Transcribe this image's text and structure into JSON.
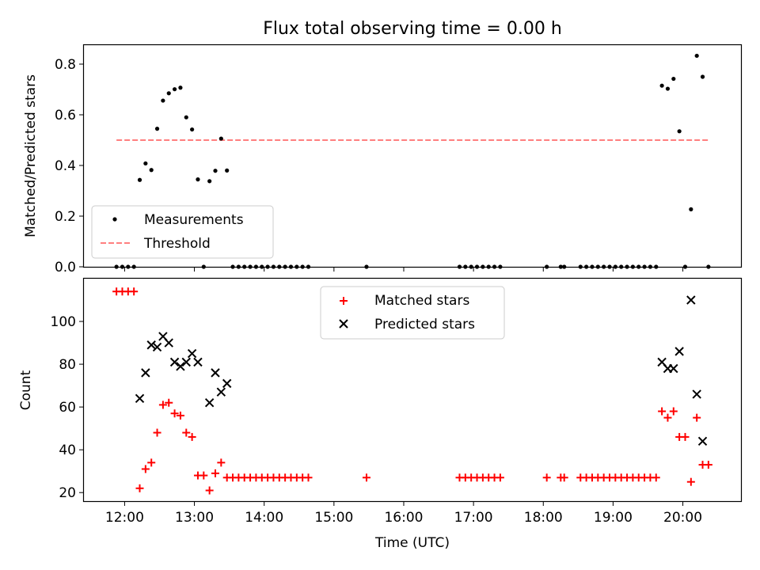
{
  "chart_data": [
    {
      "type": "scatter",
      "title": "Flux total observing time = 0.00 h",
      "ylabel": "Matched/Predicted stars",
      "xlabel": "",
      "x_unit": "hours UTC",
      "xlim": [
        "11:25",
        "20:50"
      ],
      "ylim": [
        0,
        0.875
      ],
      "yticks": [
        0,
        0.2,
        0.4,
        0.6,
        0.8
      ],
      "ytick_labels": [
        "0.0",
        "0.2",
        "0.4",
        "0.6",
        "0.8"
      ],
      "legend_placement": "lower-left",
      "series": [
        {
          "name": "Measurements",
          "marker": "dot",
          "color": "#000000",
          "points": [
            [
              "11:53",
              0
            ],
            [
              "11:58",
              0
            ],
            [
              "12:03",
              0
            ],
            [
              "12:08",
              0
            ],
            [
              "12:13",
              0.343
            ],
            [
              "12:18",
              0.408
            ],
            [
              "12:23",
              0.382
            ],
            [
              "12:28",
              0.545
            ],
            [
              "12:33",
              0.656
            ],
            [
              "12:38",
              0.685
            ],
            [
              "12:43",
              0.701
            ],
            [
              "12:48",
              0.707
            ],
            [
              "12:53",
              0.59
            ],
            [
              "12:58",
              0.542
            ],
            [
              "13:03",
              0.345
            ],
            [
              "13:08",
              0
            ],
            [
              "13:13",
              0.338
            ],
            [
              "13:18",
              0.379
            ],
            [
              "13:23",
              0.506
            ],
            [
              "13:28",
              0.38
            ],
            [
              "13:33",
              0
            ],
            [
              "13:38",
              0
            ],
            [
              "13:43",
              0
            ],
            [
              "13:48",
              0
            ],
            [
              "13:53",
              0
            ],
            [
              "13:58",
              0
            ],
            [
              "14:03",
              0
            ],
            [
              "14:08",
              0
            ],
            [
              "14:13",
              0
            ],
            [
              "14:18",
              0
            ],
            [
              "14:23",
              0
            ],
            [
              "14:28",
              0
            ],
            [
              "14:33",
              0
            ],
            [
              "14:38",
              0
            ],
            [
              "15:28",
              0
            ],
            [
              "16:48",
              0
            ],
            [
              "16:53",
              0
            ],
            [
              "16:58",
              0
            ],
            [
              "17:03",
              0
            ],
            [
              "17:08",
              0
            ],
            [
              "17:13",
              0
            ],
            [
              "17:18",
              0
            ],
            [
              "17:23",
              0
            ],
            [
              "18:03",
              0
            ],
            [
              "18:15",
              0
            ],
            [
              "18:18",
              0
            ],
            [
              "18:32",
              0
            ],
            [
              "18:37",
              0
            ],
            [
              "18:42",
              0
            ],
            [
              "18:47",
              0
            ],
            [
              "18:52",
              0
            ],
            [
              "18:57",
              0
            ],
            [
              "19:02",
              0
            ],
            [
              "19:07",
              0
            ],
            [
              "19:12",
              0
            ],
            [
              "19:17",
              0
            ],
            [
              "19:22",
              0
            ],
            [
              "19:27",
              0
            ],
            [
              "19:32",
              0
            ],
            [
              "19:37",
              0
            ],
            [
              "19:42",
              0.715
            ],
            [
              "19:47",
              0.703
            ],
            [
              "19:52",
              0.742
            ],
            [
              "19:57",
              0.535
            ],
            [
              "20:02",
              0
            ],
            [
              "20:07",
              0.227
            ],
            [
              "20:12",
              0.833
            ],
            [
              "20:17",
              0.75
            ],
            [
              "20:22",
              0
            ]
          ]
        },
        {
          "name": "Threshold",
          "style": "dashed-line",
          "color": "#ff7f7f",
          "x": [
            "11:53",
            "20:22"
          ],
          "y": [
            0.5,
            0.5
          ]
        }
      ]
    },
    {
      "type": "scatter",
      "title": "",
      "ylabel": "Count",
      "xlabel": "Time (UTC)",
      "xlim": [
        "11:25",
        "20:50"
      ],
      "ylim": [
        16,
        120
      ],
      "yticks": [
        20,
        40,
        60,
        80,
        100
      ],
      "ytick_labels": [
        "20",
        "40",
        "60",
        "80",
        "100"
      ],
      "xticks": [
        "12:00",
        "13:00",
        "14:00",
        "15:00",
        "16:00",
        "17:00",
        "18:00",
        "19:00",
        "20:00"
      ],
      "legend_placement": "upper-center",
      "series": [
        {
          "name": "Matched stars",
          "marker": "plus",
          "color": "#ff0000",
          "points": [
            [
              "11:53",
              114
            ],
            [
              "11:58",
              114
            ],
            [
              "12:03",
              114
            ],
            [
              "12:08",
              114
            ],
            [
              "12:13",
              22
            ],
            [
              "12:18",
              31
            ],
            [
              "12:23",
              34
            ],
            [
              "12:28",
              48
            ],
            [
              "12:33",
              61
            ],
            [
              "12:38",
              62
            ],
            [
              "12:43",
              57
            ],
            [
              "12:48",
              56
            ],
            [
              "12:53",
              48
            ],
            [
              "12:58",
              46
            ],
            [
              "13:03",
              28
            ],
            [
              "13:08",
              28
            ],
            [
              "13:13",
              21
            ],
            [
              "13:18",
              29
            ],
            [
              "13:23",
              34
            ],
            [
              "13:28",
              27
            ],
            [
              "13:33",
              27
            ],
            [
              "13:38",
              27
            ],
            [
              "13:43",
              27
            ],
            [
              "13:48",
              27
            ],
            [
              "13:53",
              27
            ],
            [
              "13:58",
              27
            ],
            [
              "14:03",
              27
            ],
            [
              "14:08",
              27
            ],
            [
              "14:13",
              27
            ],
            [
              "14:18",
              27
            ],
            [
              "14:23",
              27
            ],
            [
              "14:28",
              27
            ],
            [
              "14:33",
              27
            ],
            [
              "14:38",
              27
            ],
            [
              "15:28",
              27
            ],
            [
              "16:48",
              27
            ],
            [
              "16:53",
              27
            ],
            [
              "16:58",
              27
            ],
            [
              "17:03",
              27
            ],
            [
              "17:08",
              27
            ],
            [
              "17:13",
              27
            ],
            [
              "17:18",
              27
            ],
            [
              "17:23",
              27
            ],
            [
              "18:03",
              27
            ],
            [
              "18:15",
              27
            ],
            [
              "18:18",
              27
            ],
            [
              "18:32",
              27
            ],
            [
              "18:37",
              27
            ],
            [
              "18:42",
              27
            ],
            [
              "18:47",
              27
            ],
            [
              "18:52",
              27
            ],
            [
              "18:57",
              27
            ],
            [
              "19:02",
              27
            ],
            [
              "19:07",
              27
            ],
            [
              "19:12",
              27
            ],
            [
              "19:17",
              27
            ],
            [
              "19:22",
              27
            ],
            [
              "19:27",
              27
            ],
            [
              "19:32",
              27
            ],
            [
              "19:37",
              27
            ],
            [
              "19:42",
              58
            ],
            [
              "19:47",
              55
            ],
            [
              "19:52",
              58
            ],
            [
              "19:57",
              46
            ],
            [
              "20:02",
              46
            ],
            [
              "20:07",
              25
            ],
            [
              "20:12",
              55
            ],
            [
              "20:17",
              33
            ],
            [
              "20:22",
              33
            ]
          ]
        },
        {
          "name": "Predicted stars",
          "marker": "x",
          "color": "#000000",
          "points": [
            [
              "12:13",
              64
            ],
            [
              "12:18",
              76
            ],
            [
              "12:23",
              89
            ],
            [
              "12:28",
              88
            ],
            [
              "12:33",
              93
            ],
            [
              "12:38",
              90
            ],
            [
              "12:43",
              81
            ],
            [
              "12:48",
              79
            ],
            [
              "12:53",
              81
            ],
            [
              "12:58",
              85
            ],
            [
              "13:03",
              81
            ],
            [
              "13:13",
              62
            ],
            [
              "13:18",
              76
            ],
            [
              "13:23",
              67
            ],
            [
              "13:28",
              71
            ],
            [
              "19:42",
              81
            ],
            [
              "19:47",
              78
            ],
            [
              "19:52",
              78
            ],
            [
              "19:57",
              86
            ],
            [
              "20:07",
              110
            ],
            [
              "20:12",
              66
            ],
            [
              "20:17",
              44
            ]
          ]
        }
      ]
    }
  ]
}
